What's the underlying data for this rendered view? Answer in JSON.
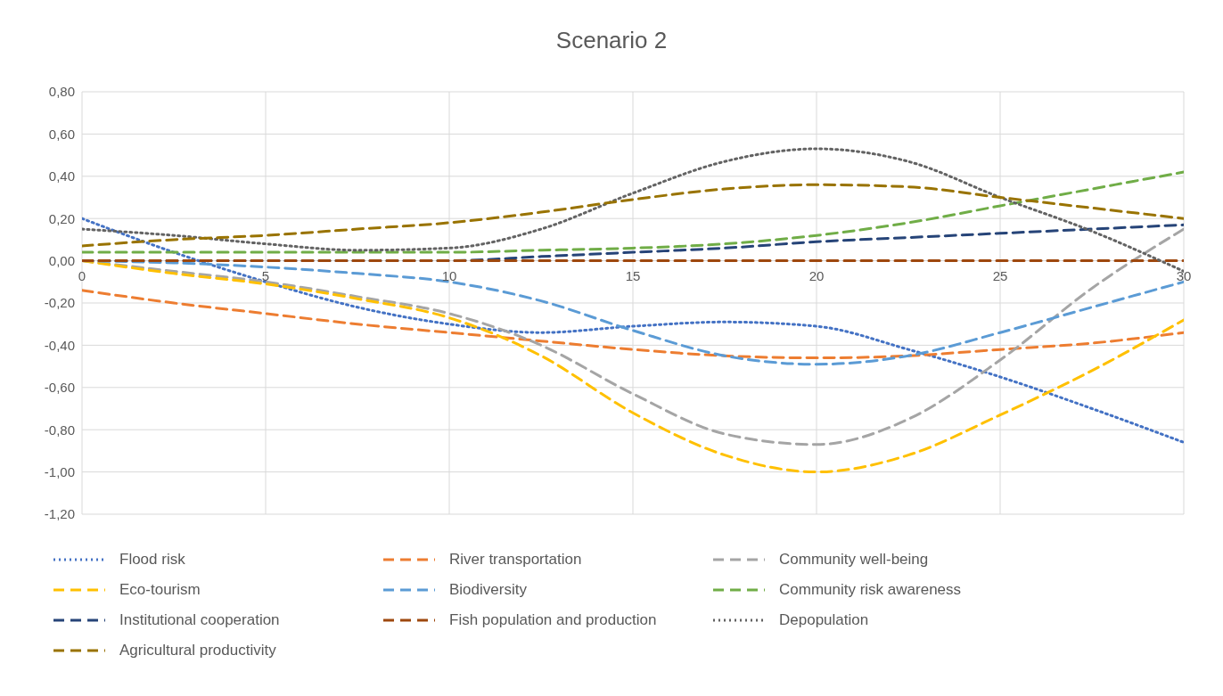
{
  "chart_data": {
    "type": "line",
    "title": "Scenario 2",
    "x": [
      0,
      2.5,
      5,
      7.5,
      10,
      12.5,
      15,
      17.5,
      20,
      22.5,
      25,
      27.5,
      30
    ],
    "xlim": [
      0,
      30
    ],
    "xticks": [
      0,
      5,
      10,
      15,
      20,
      25,
      30
    ],
    "ylim": [
      -1.2,
      0.8
    ],
    "yticks": [
      {
        "value": -1.2,
        "label": "-1,20"
      },
      {
        "value": -1,
        "label": "-1,00"
      },
      {
        "value": -0.8,
        "label": "-0,80"
      },
      {
        "value": -0.6,
        "label": "-0,60"
      },
      {
        "value": -0.4,
        "label": "-0,40"
      },
      {
        "value": -0.2,
        "label": "-0,20"
      },
      {
        "value": 0,
        "label": "0,00"
      },
      {
        "value": 0.2,
        "label": "0,20"
      },
      {
        "value": 0.4,
        "label": "0,40"
      },
      {
        "value": 0.6,
        "label": "0,60"
      },
      {
        "value": 0.8,
        "label": "0,80"
      }
    ],
    "grid": true,
    "legend": "bottom",
    "marker": "none",
    "series": [
      {
        "name": "Flood risk",
        "color": "#4472c4",
        "line_style": "dotted",
        "values": [
          0.2,
          0.04,
          -0.1,
          -0.22,
          -0.3,
          -0.34,
          -0.31,
          -0.29,
          -0.31,
          -0.42,
          -0.55,
          -0.7,
          -0.86
        ]
      },
      {
        "name": "River transportation",
        "color": "#ed7d31",
        "line_style": "dashed",
        "values": [
          -0.14,
          -0.2,
          -0.25,
          -0.3,
          -0.34,
          -0.38,
          -0.42,
          -0.45,
          -0.46,
          -0.45,
          -0.42,
          -0.39,
          -0.34
        ]
      },
      {
        "name": "Community well-being",
        "color": "#a5a5a5",
        "line_style": "dashed",
        "values": [
          0,
          -0.05,
          -0.1,
          -0.17,
          -0.25,
          -0.4,
          -0.63,
          -0.82,
          -0.87,
          -0.75,
          -0.47,
          -0.13,
          0.15
        ]
      },
      {
        "name": "Eco-tourism",
        "color": "#ffc000",
        "line_style": "dashed",
        "values": [
          0,
          -0.06,
          -0.11,
          -0.18,
          -0.27,
          -0.45,
          -0.72,
          -0.92,
          -1,
          -0.92,
          -0.73,
          -0.52,
          -0.28
        ]
      },
      {
        "name": "Biodiversity",
        "color": "#5b9bd5",
        "line_style": "dashed",
        "values": [
          0,
          -0.01,
          -0.03,
          -0.06,
          -0.1,
          -0.19,
          -0.33,
          -0.45,
          -0.49,
          -0.45,
          -0.34,
          -0.22,
          -0.1
        ]
      },
      {
        "name": "Community risk awareness",
        "color": "#70ad47",
        "line_style": "dashed",
        "values": [
          0.04,
          0.04,
          0.04,
          0.04,
          0.04,
          0.05,
          0.06,
          0.08,
          0.12,
          0.18,
          0.26,
          0.34,
          0.42
        ]
      },
      {
        "name": "Institutional cooperation",
        "color": "#264478",
        "line_style": "dashed",
        "values": [
          0,
          0,
          0,
          0,
          0,
          0.02,
          0.04,
          0.06,
          0.09,
          0.11,
          0.13,
          0.15,
          0.17
        ]
      },
      {
        "name": "Fish population and production",
        "color": "#9e480e",
        "line_style": "dashed",
        "values": [
          0,
          0,
          0,
          0,
          0,
          0,
          0,
          0,
          0,
          0,
          0,
          0,
          0
        ]
      },
      {
        "name": "Depopulation",
        "color": "#636363",
        "line_style": "dotted",
        "values": [
          0.15,
          0.12,
          0.08,
          0.05,
          0.06,
          0.15,
          0.32,
          0.47,
          0.53,
          0.47,
          0.3,
          0.14,
          -0.05
        ]
      },
      {
        "name": "Agricultural productivity",
        "color": "#997300",
        "line_style": "dashed",
        "values": [
          0.07,
          0.1,
          0.12,
          0.15,
          0.18,
          0.23,
          0.29,
          0.34,
          0.36,
          0.35,
          0.3,
          0.25,
          0.2
        ]
      }
    ]
  }
}
